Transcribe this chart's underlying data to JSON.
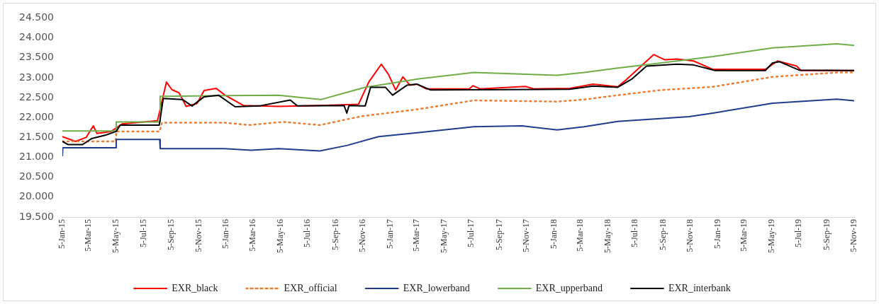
{
  "chart_data": {
    "type": "line",
    "grid": false,
    "legend": "bottom",
    "xlim": [
      "2015-01-05",
      "2019-11-05"
    ],
    "xticks": [
      {
        "value": "2015-01-05",
        "label": "5-Jan-15"
      },
      {
        "value": "2015-03-05",
        "label": "5-Mar-15"
      },
      {
        "value": "2015-05-05",
        "label": "5-May-15"
      },
      {
        "value": "2015-07-05",
        "label": "5-Jul-15"
      },
      {
        "value": "2015-09-05",
        "label": "5-Sep-15"
      },
      {
        "value": "2015-11-05",
        "label": "5-Nov-15"
      },
      {
        "value": "2016-01-05",
        "label": "5-Jan-16"
      },
      {
        "value": "2016-03-05",
        "label": "5-Mar-16"
      },
      {
        "value": "2016-05-05",
        "label": "5-May-16"
      },
      {
        "value": "2016-07-05",
        "label": "5-Jul-16"
      },
      {
        "value": "2016-09-05",
        "label": "5-Sep-16"
      },
      {
        "value": "2016-11-05",
        "label": "5-Nov-16"
      },
      {
        "value": "2017-01-05",
        "label": "5-Jan-17"
      },
      {
        "value": "2017-03-05",
        "label": "5-Mar-17"
      },
      {
        "value": "2017-05-05",
        "label": "5-May-17"
      },
      {
        "value": "2017-07-05",
        "label": "5-Jul-17"
      },
      {
        "value": "2017-09-05",
        "label": "5-Sep-17"
      },
      {
        "value": "2017-11-05",
        "label": "5-Nov-17"
      },
      {
        "value": "2018-01-05",
        "label": "5-Jan-18"
      },
      {
        "value": "2018-03-05",
        "label": "5-Mar-18"
      },
      {
        "value": "2018-05-05",
        "label": "5-May-18"
      },
      {
        "value": "2018-07-05",
        "label": "5-Jul-18"
      },
      {
        "value": "2018-09-05",
        "label": "5-Sep-18"
      },
      {
        "value": "2018-11-05",
        "label": "5-Nov-18"
      },
      {
        "value": "2019-01-05",
        "label": "5-Jan-19"
      },
      {
        "value": "2019-03-05",
        "label": "5-Mar-19"
      },
      {
        "value": "2019-05-05",
        "label": "5-May-19"
      },
      {
        "value": "2019-07-05",
        "label": "5-Jul-19"
      },
      {
        "value": "2019-09-05",
        "label": "5-Sep-19"
      },
      {
        "value": "2019-11-05",
        "label": "5-Nov-19"
      }
    ],
    "ylim": [
      19.5,
      24.5
    ],
    "yticks": [
      {
        "value": 19.5,
        "label": "19.500"
      },
      {
        "value": 20,
        "label": "20.000"
      },
      {
        "value": 20.5,
        "label": "20.500"
      },
      {
        "value": 21,
        "label": "21.000"
      },
      {
        "value": 21.5,
        "label": "21.500"
      },
      {
        "value": 22,
        "label": "22.000"
      },
      {
        "value": 22.5,
        "label": "22.500"
      },
      {
        "value": 23,
        "label": "23.000"
      },
      {
        "value": 23.5,
        "label": "23.500"
      },
      {
        "value": 24,
        "label": "24.000"
      },
      {
        "value": 24.5,
        "label": "24.500"
      }
    ],
    "series": [
      {
        "name": "EXR_black",
        "color": "#ff0000",
        "line_style": "solid",
        "x": [
          "2015-01-05",
          "2015-02-03",
          "2015-02-27",
          "2015-03-15",
          "2015-03-23",
          "2015-04-24",
          "2015-05-18",
          "2015-08-05",
          "2015-08-25",
          "2015-09-06",
          "2015-09-22",
          "2015-10-08",
          "2015-11-01",
          "2015-11-17",
          "2015-12-14",
          "2016-01-04",
          "2016-01-28",
          "2016-02-13",
          "2016-05-01",
          "2016-08-01",
          "2016-10-26",
          "2016-11-18",
          "2016-12-16",
          "2017-01-01",
          "2017-01-17",
          "2017-02-02",
          "2017-02-18",
          "2017-03-05",
          "2017-03-26",
          "2017-06-30",
          "2017-07-08",
          "2017-07-24",
          "2017-11-02",
          "2017-11-21",
          "2018-02-09",
          "2018-04-02",
          "2018-05-27",
          "2018-06-12",
          "2018-07-18",
          "2018-08-15",
          "2018-09-09",
          "2018-10-06",
          "2018-11-12",
          "2018-12-25",
          "2019-04-21",
          "2019-05-18",
          "2019-06-30",
          "2019-07-09",
          "2019-11-05"
        ],
        "values": [
          21.52,
          21.4,
          21.5,
          21.79,
          21.6,
          21.65,
          21.84,
          21.92,
          22.89,
          22.7,
          22.62,
          22.28,
          22.35,
          22.68,
          22.73,
          22.55,
          22.4,
          22.3,
          22.28,
          22.3,
          22.33,
          22.89,
          23.34,
          23.08,
          22.69,
          23.02,
          22.81,
          22.84,
          22.72,
          22.72,
          22.8,
          22.72,
          22.78,
          22.72,
          22.73,
          22.84,
          22.77,
          22.92,
          23.29,
          23.58,
          23.45,
          23.47,
          23.42,
          23.21,
          23.21,
          23.42,
          23.29,
          23.18,
          23.18
        ]
      },
      {
        "name": "EXR_official",
        "color": "#ed7d31",
        "line_style": "dotted",
        "x": [
          "2015-01-05",
          "2015-05-04",
          "2015-05-05",
          "2015-08-10",
          "2015-08-15",
          "2016-01-01",
          "2016-02-25",
          "2016-05-11",
          "2016-08-01",
          "2016-11-01",
          "2017-03-10",
          "2017-07-10",
          "2018-01-12",
          "2018-03-13",
          "2018-05-27",
          "2018-09-01",
          "2018-12-25",
          "2019-05-07",
          "2019-09-27",
          "2019-11-05"
        ],
        "values": [
          21.4,
          21.4,
          21.65,
          21.65,
          21.87,
          21.87,
          21.81,
          21.89,
          21.81,
          22.03,
          22.21,
          22.43,
          22.4,
          22.45,
          22.56,
          22.69,
          22.77,
          23.02,
          23.13,
          23.13
        ]
      },
      {
        "name": "EXR_lowerband",
        "color": "#203c8c",
        "line_style": "solid",
        "x": [
          "2015-01-05",
          "2015-01-06",
          "2015-05-04",
          "2015-05-05",
          "2015-08-10",
          "2015-08-11",
          "2016-01-01",
          "2016-03-01",
          "2016-05-01",
          "2016-08-01",
          "2016-10-01",
          "2016-12-10",
          "2017-03-10",
          "2017-07-10",
          "2017-10-25",
          "2018-01-12",
          "2018-03-13",
          "2018-05-27",
          "2018-11-02",
          "2018-12-25",
          "2019-05-07",
          "2019-09-27",
          "2019-11-05"
        ],
        "values": [
          21.03,
          21.24,
          21.24,
          21.45,
          21.45,
          21.22,
          21.22,
          21.18,
          21.22,
          21.16,
          21.3,
          21.52,
          21.62,
          21.77,
          21.79,
          21.69,
          21.77,
          21.9,
          22.02,
          22.11,
          22.36,
          22.46,
          22.42
        ]
      },
      {
        "name": "EXR_upperband",
        "color": "#70ad47",
        "line_style": "solid",
        "x": [
          "2015-01-05",
          "2015-05-04",
          "2015-05-05",
          "2015-08-10",
          "2015-08-11",
          "2016-01-01",
          "2016-05-01",
          "2016-08-03",
          "2016-11-10",
          "2017-03-10",
          "2017-07-10",
          "2018-01-12",
          "2018-03-13",
          "2018-05-27",
          "2018-09-01",
          "2018-12-25",
          "2019-05-07",
          "2019-09-27",
          "2019-11-05"
        ],
        "values": [
          21.66,
          21.66,
          21.89,
          21.89,
          22.53,
          22.55,
          22.56,
          22.45,
          22.76,
          22.97,
          23.13,
          23.06,
          23.13,
          23.24,
          23.37,
          23.53,
          23.75,
          23.85,
          23.81
        ]
      },
      {
        "name": "EXR_interbank",
        "color": "#000000",
        "line_style": "solid",
        "x": [
          "2015-01-05",
          "2015-01-18",
          "2015-02-19",
          "2015-03-11",
          "2015-04-12",
          "2015-05-05",
          "2015-05-14",
          "2015-08-09",
          "2015-08-18",
          "2015-09-30",
          "2015-10-21",
          "2015-11-17",
          "2015-12-19",
          "2016-01-25",
          "2016-03-19",
          "2016-05-27",
          "2016-06-12",
          "2016-09-24",
          "2016-09-30",
          "2016-10-05",
          "2016-11-10",
          "2016-11-22",
          "2016-12-25",
          "2017-01-10",
          "2017-02-11",
          "2017-03-05",
          "2017-04-05",
          "2018-02-09",
          "2018-04-02",
          "2018-05-27",
          "2018-06-28",
          "2018-07-30",
          "2018-10-06",
          "2018-11-12",
          "2018-12-30",
          "2019-04-21",
          "2019-05-07",
          "2019-05-23",
          "2019-07-05",
          "2019-11-05"
        ],
        "values": [
          21.4,
          21.32,
          21.32,
          21.47,
          21.56,
          21.65,
          21.81,
          21.81,
          22.48,
          22.45,
          22.29,
          22.52,
          22.56,
          22.27,
          22.29,
          22.44,
          22.29,
          22.3,
          22.11,
          22.3,
          22.29,
          22.76,
          22.76,
          22.56,
          22.81,
          22.84,
          22.69,
          22.71,
          22.79,
          22.76,
          22.97,
          23.29,
          23.34,
          23.32,
          23.18,
          23.18,
          23.37,
          23.4,
          23.19,
          23.18
        ]
      }
    ]
  }
}
